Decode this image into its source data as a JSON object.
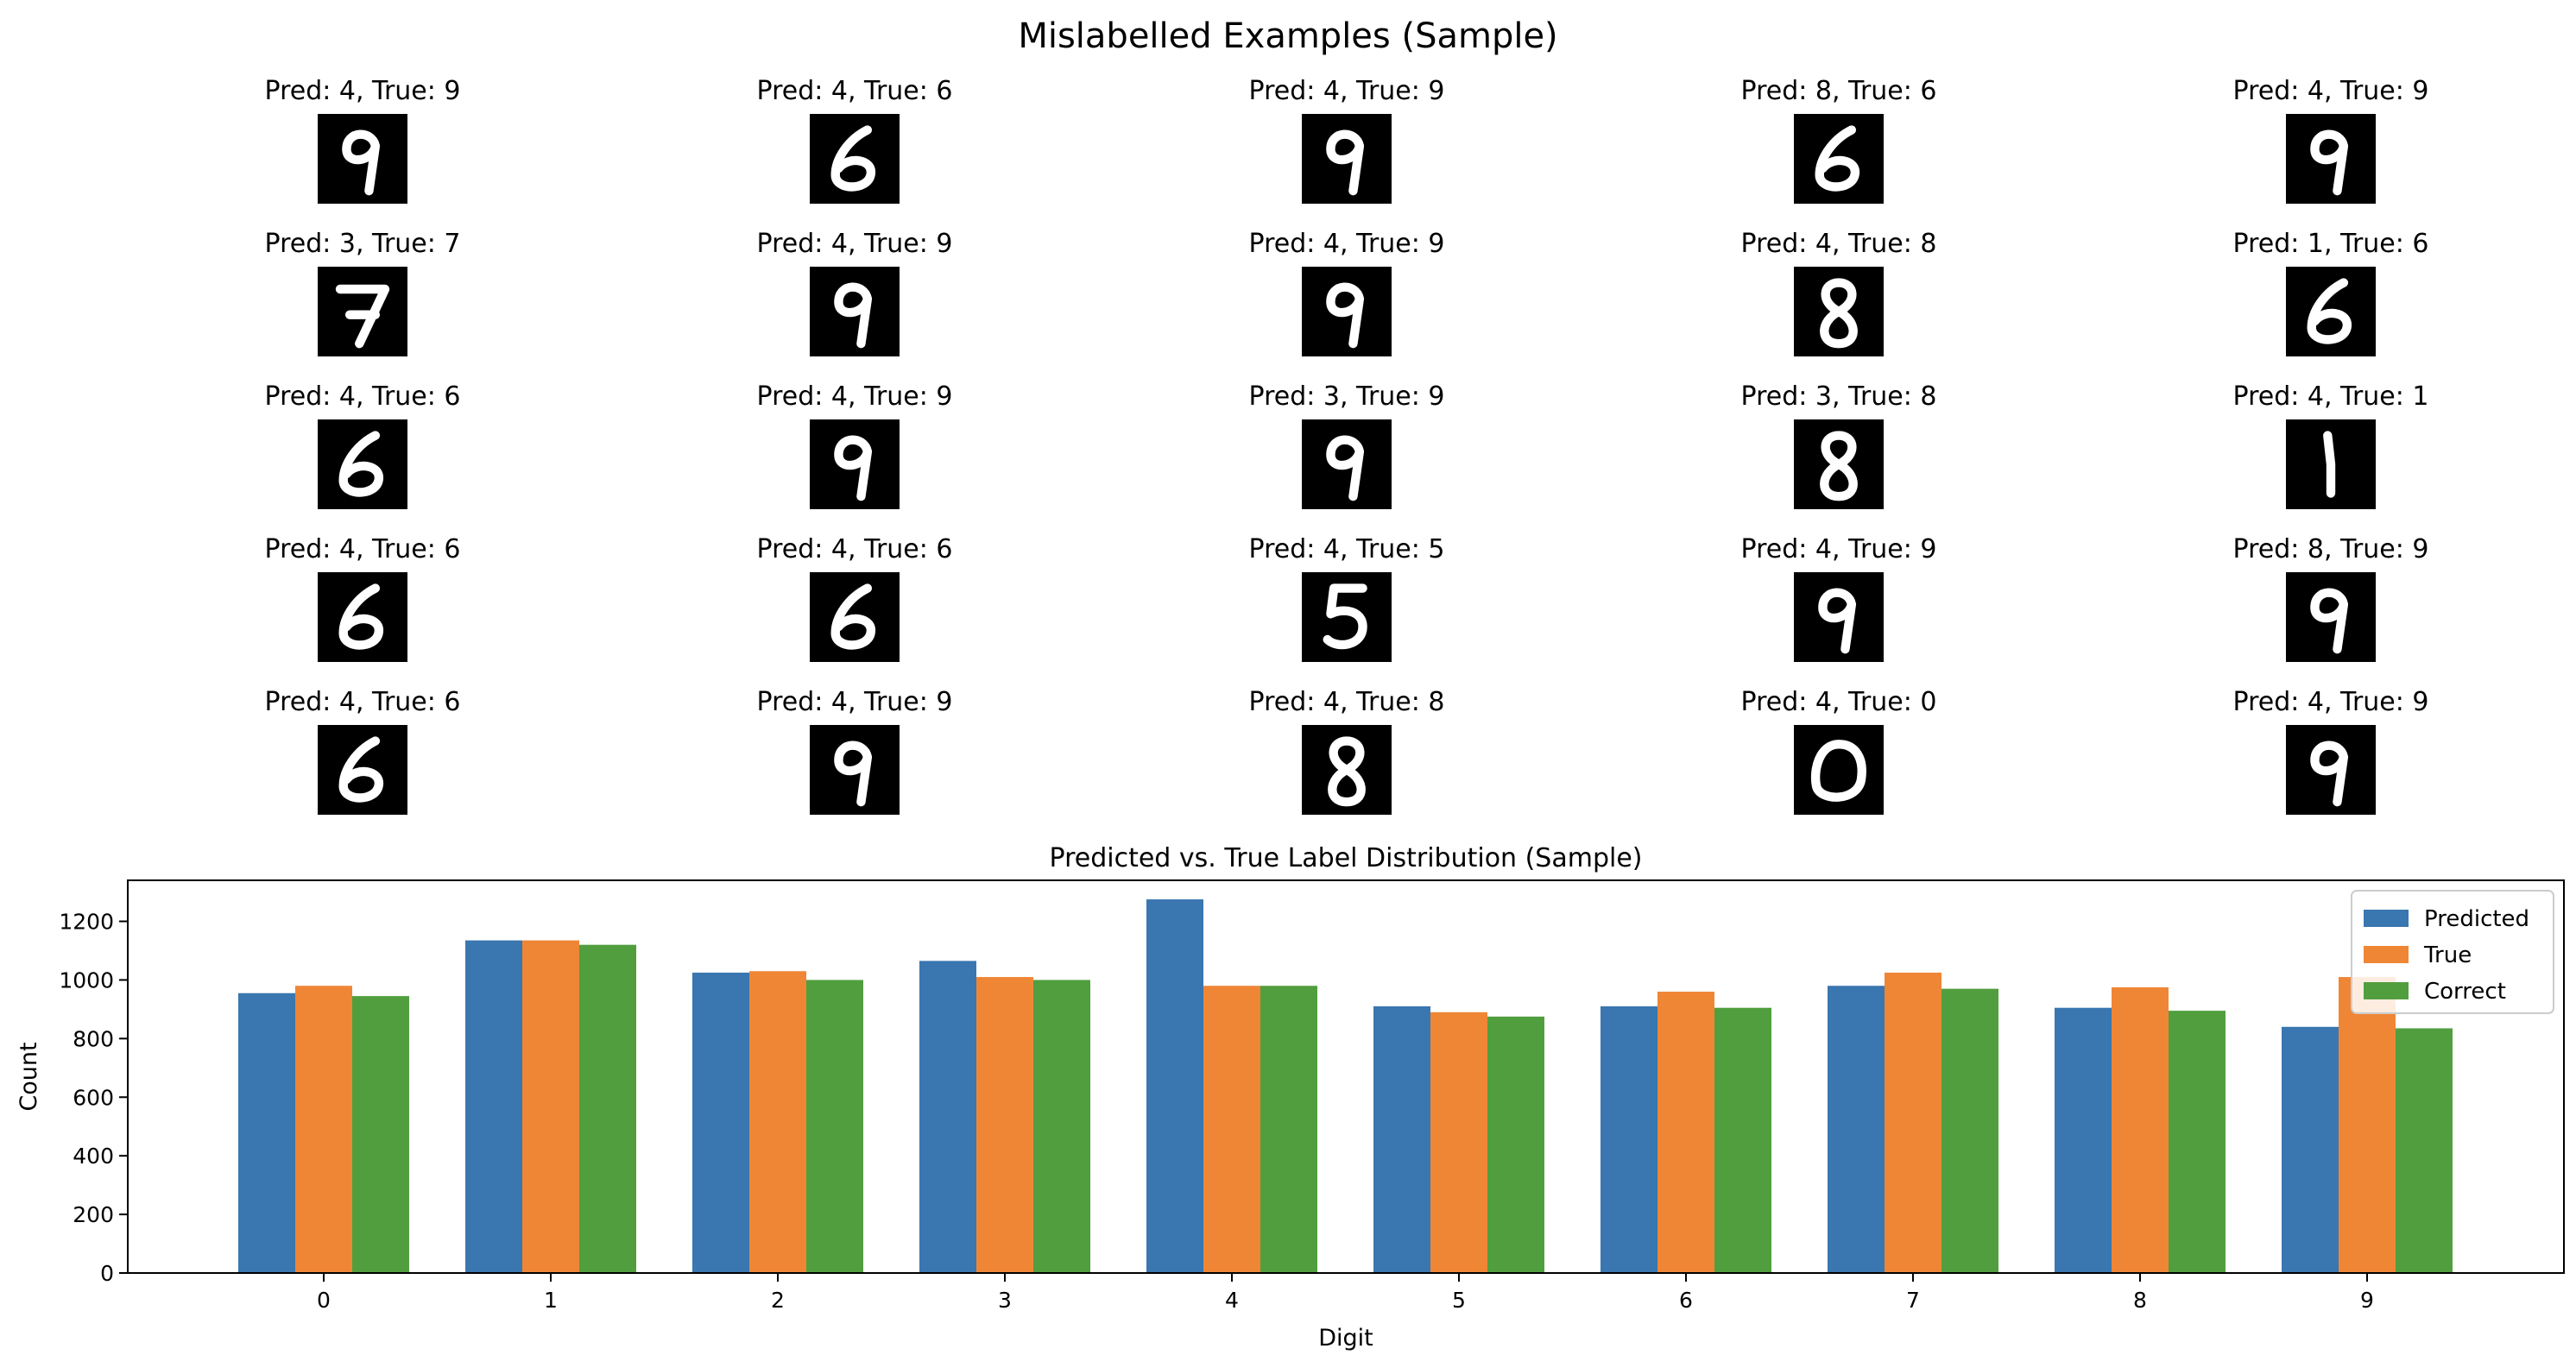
{
  "suptitle": "Mislabelled Examples (Sample)",
  "examples": [
    {
      "label": "Pred: 4, True: 9",
      "pred": 4,
      "true": 9
    },
    {
      "label": "Pred: 4, True: 6",
      "pred": 4,
      "true": 6
    },
    {
      "label": "Pred: 4, True: 9",
      "pred": 4,
      "true": 9
    },
    {
      "label": "Pred: 8, True: 6",
      "pred": 8,
      "true": 6
    },
    {
      "label": "Pred: 4, True: 9",
      "pred": 4,
      "true": 9
    },
    {
      "label": "Pred: 3, True: 7",
      "pred": 3,
      "true": 7
    },
    {
      "label": "Pred: 4, True: 9",
      "pred": 4,
      "true": 9
    },
    {
      "label": "Pred: 4, True: 9",
      "pred": 4,
      "true": 9
    },
    {
      "label": "Pred: 4, True: 8",
      "pred": 4,
      "true": 8
    },
    {
      "label": "Pred: 1, True: 6",
      "pred": 1,
      "true": 6
    },
    {
      "label": "Pred: 4, True: 6",
      "pred": 4,
      "true": 6
    },
    {
      "label": "Pred: 4, True: 9",
      "pred": 4,
      "true": 9
    },
    {
      "label": "Pred: 3, True: 9",
      "pred": 3,
      "true": 9
    },
    {
      "label": "Pred: 3, True: 8",
      "pred": 3,
      "true": 8
    },
    {
      "label": "Pred: 4, True: 1",
      "pred": 4,
      "true": 1
    },
    {
      "label": "Pred: 4, True: 6",
      "pred": 4,
      "true": 6
    },
    {
      "label": "Pred: 4, True: 6",
      "pred": 4,
      "true": 6
    },
    {
      "label": "Pred: 4, True: 5",
      "pred": 4,
      "true": 5
    },
    {
      "label": "Pred: 4, True: 9",
      "pred": 4,
      "true": 9
    },
    {
      "label": "Pred: 8, True: 9",
      "pred": 8,
      "true": 9
    },
    {
      "label": "Pred: 4, True: 6",
      "pred": 4,
      "true": 6
    },
    {
      "label": "Pred: 4, True: 9",
      "pred": 4,
      "true": 9
    },
    {
      "label": "Pred: 4, True: 8",
      "pred": 4,
      "true": 8
    },
    {
      "label": "Pred: 4, True: 0",
      "pred": 4,
      "true": 0
    },
    {
      "label": "Pred: 4, True: 9",
      "pred": 4,
      "true": 9
    }
  ],
  "chart_data": {
    "type": "bar",
    "title": "Predicted vs. True Label Distribution (Sample)",
    "xlabel": "Digit",
    "ylabel": "Count",
    "categories": [
      "0",
      "1",
      "2",
      "3",
      "4",
      "5",
      "6",
      "7",
      "8",
      "9"
    ],
    "ylim": [
      0,
      1340
    ],
    "yticks": [
      0,
      200,
      400,
      600,
      800,
      1000,
      1200
    ],
    "legend_position": "top-right",
    "grid": false,
    "series": [
      {
        "name": "Predicted",
        "color": "#3a76af",
        "values": [
          955,
          1135,
          1025,
          1065,
          1275,
          910,
          910,
          980,
          905,
          840
        ]
      },
      {
        "name": "True",
        "color": "#ef8636",
        "values": [
          980,
          1135,
          1030,
          1010,
          980,
          890,
          960,
          1025,
          975,
          1010
        ]
      },
      {
        "name": "Correct",
        "color": "#519e3e",
        "values": [
          945,
          1120,
          1000,
          1000,
          980,
          875,
          905,
          970,
          895,
          835
        ]
      }
    ]
  }
}
